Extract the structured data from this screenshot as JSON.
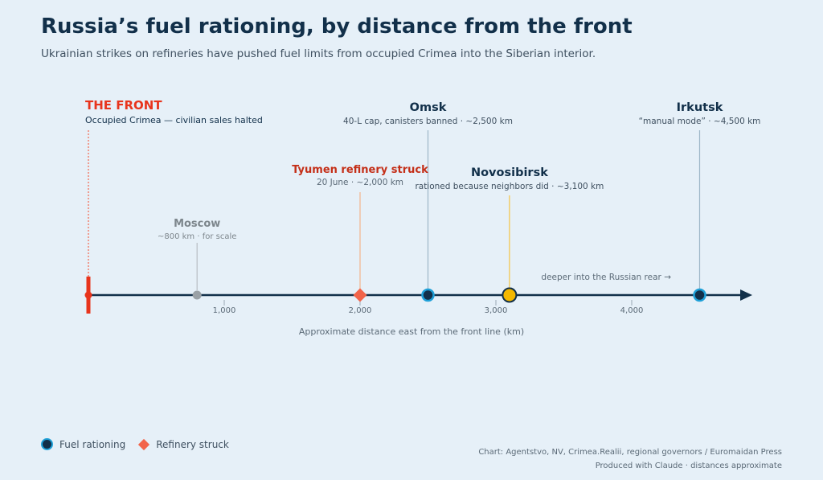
{
  "title": "Russia’s fuel rationing, by distance from the front",
  "subtitle": "Ukrainian strikes on refineries have pushed fuel limits from occupied Crimea into the Siberian interior.",
  "chart_data": {
    "type": "timeline",
    "xlabel": "Approximate distance east from the front line (km)",
    "xticks": [
      1000,
      2000,
      3000,
      4000
    ],
    "xtick_labels": [
      "1,000",
      "2,000",
      "3,000",
      "4,000"
    ],
    "xlim": [
      0,
      4900
    ],
    "arrow_note": "deeper into the Russian rear →",
    "points": [
      {
        "id": "front",
        "km": 0,
        "kind": "front",
        "label": "THE FRONT",
        "sub": "Occupied Crimea — civilian sales halted",
        "color": "#e8341c"
      },
      {
        "id": "moscow",
        "km": 800,
        "kind": "reference",
        "label": "Moscow",
        "sub": "~800 km · for scale",
        "color": "#9aa1a6"
      },
      {
        "id": "tyumen",
        "km": 2000,
        "kind": "refinery",
        "label": "Tyumen refinery struck",
        "sub": "20 June · ~2,000 km",
        "color": "#f2644a"
      },
      {
        "id": "omsk",
        "km": 2500,
        "kind": "rationing",
        "label": "Omsk",
        "sub": "40-L cap, canisters banned · ~2,500 km",
        "color": "#1ea0d8"
      },
      {
        "id": "novosibirsk",
        "km": 3100,
        "kind": "rationing-indirect",
        "label": "Novosibirsk",
        "sub": "rationed because neighbors did · ~3,100 km",
        "color": "#f5b800"
      },
      {
        "id": "irkutsk",
        "km": 4500,
        "kind": "rationing",
        "label": "Irkutsk",
        "sub": "“manual mode” · ~4,500 km",
        "color": "#1ea0d8"
      }
    ]
  },
  "legend": {
    "rationing": "Fuel rationing",
    "refinery": "Refinery struck"
  },
  "source": {
    "line1": "Chart: Agentstvo, NV, Crimea.Realii, regional governors / Euromaidan Press",
    "line2": "Produced with Claude · distances approximate"
  }
}
